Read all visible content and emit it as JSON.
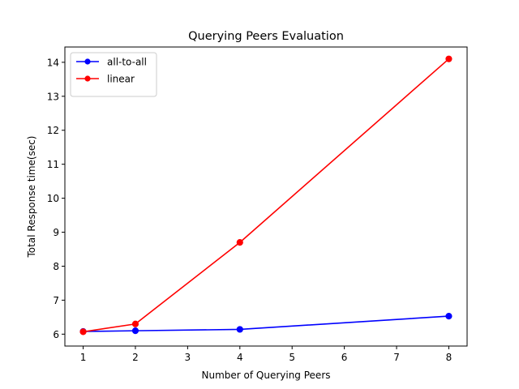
{
  "chart_data": {
    "type": "line",
    "title": "Querying Peers Evaluation",
    "xlabel": "Number of Querying Peers",
    "ylabel": "Total Response time(sec)",
    "x": [
      1,
      2,
      4,
      8
    ],
    "xlim": [
      0.65,
      8.35
    ],
    "ylim": [
      5.65,
      14.45
    ],
    "xticks": [
      1,
      2,
      3,
      4,
      5,
      6,
      7,
      8
    ],
    "yticks": [
      6,
      7,
      8,
      9,
      10,
      11,
      12,
      13,
      14
    ],
    "grid": false,
    "legend_position": "upper-left",
    "series": [
      {
        "name": "all-to-all",
        "color": "#0000ff",
        "marker": "circle",
        "values": [
          6.08,
          6.1,
          6.14,
          6.53
        ]
      },
      {
        "name": "linear",
        "color": "#ff0000",
        "marker": "circle",
        "values": [
          6.07,
          6.3,
          8.7,
          14.1
        ]
      }
    ]
  }
}
